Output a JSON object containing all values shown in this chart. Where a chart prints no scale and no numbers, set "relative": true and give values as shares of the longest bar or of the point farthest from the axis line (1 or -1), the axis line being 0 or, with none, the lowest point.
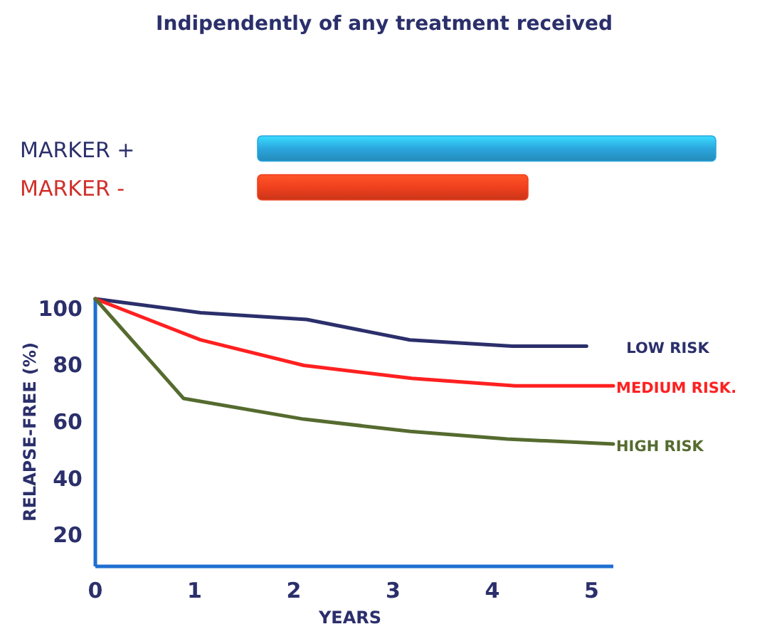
{
  "chart_data": [
    {
      "type": "bar",
      "title": "Indipendently of any treatment received",
      "orientation": "horizontal",
      "relative": true,
      "categories": [
        "MARKER +",
        "MARKER -"
      ],
      "values": [
        1,
        0.59
      ],
      "colors": [
        "#2ba6de",
        "#f0401e"
      ]
    },
    {
      "type": "line",
      "xlabel": "YEARS",
      "ylabel": "RELAPSE-FREE (%)",
      "xlim": [
        0,
        5.22
      ],
      "ylim": [
        9,
        104
      ],
      "xticks": [
        0,
        1,
        2,
        3,
        4,
        5
      ],
      "yticks": [
        20,
        40,
        60,
        80,
        100
      ],
      "grid": false,
      "series": [
        {
          "name": "LOW RISK",
          "color": "#2b2f6b",
          "x": [
            0,
            1.06,
            2.13,
            3.17,
            4.2,
            4.95
          ],
          "values": [
            103.5,
            98.6,
            96.2,
            89,
            86.8,
            86.8
          ]
        },
        {
          "name": "MEDIUM RISK.",
          "color": "#ff2020",
          "x": [
            0,
            1.06,
            2.1,
            3.19,
            4.23,
            5.22
          ],
          "values": [
            103.5,
            89,
            80,
            75.4,
            72.8,
            72.8
          ]
        },
        {
          "name": "HIGH RISK",
          "color": "#556b2f",
          "x": [
            0,
            0.89,
            2.1,
            3.17,
            4.15,
            5.22
          ],
          "values": [
            103.5,
            68.3,
            61,
            56.7,
            54,
            52.2
          ]
        }
      ]
    }
  ]
}
